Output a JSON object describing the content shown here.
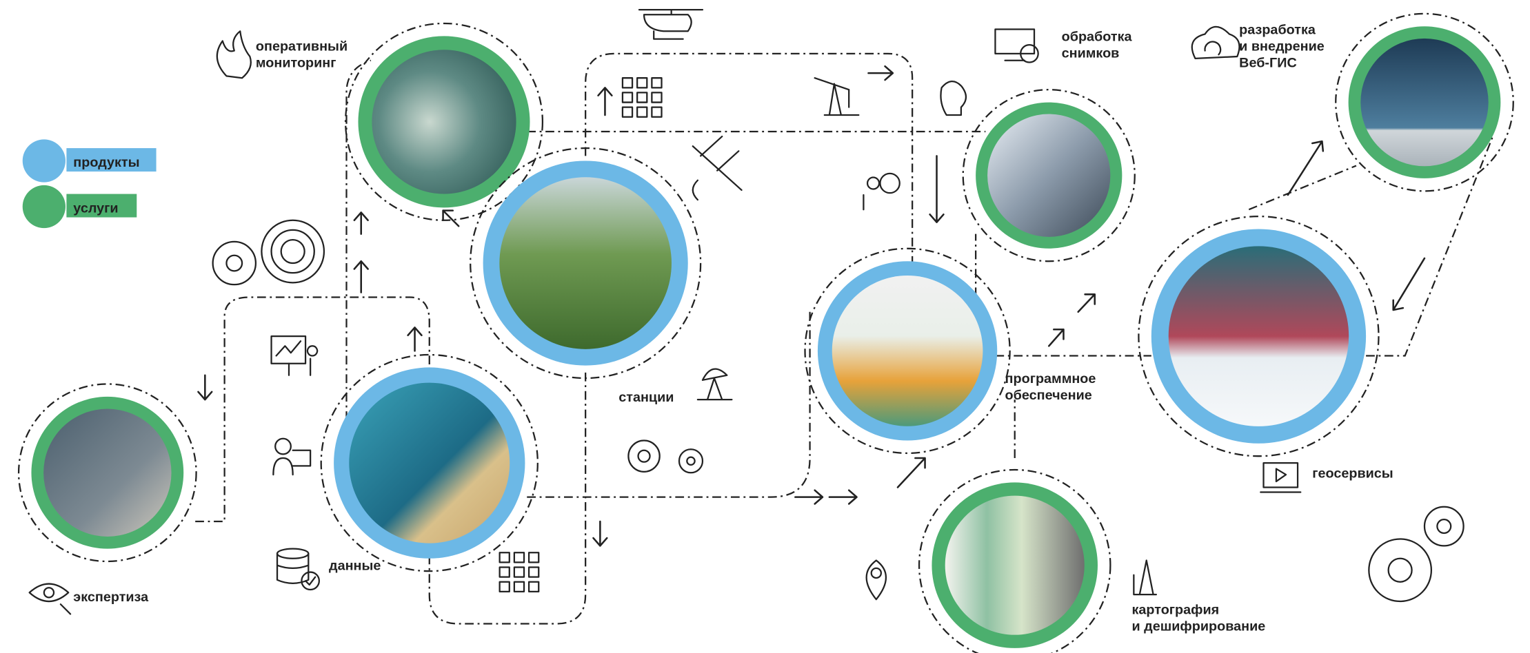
{
  "legend": [
    {
      "label": "продукты",
      "color": "#6cb8e6"
    },
    {
      "label": "услуги",
      "color": "#4caf6e"
    }
  ],
  "nodes": [
    {
      "label": [
        "оперативный",
        "мониторинг"
      ],
      "color": "#4caf6e"
    },
    {
      "label": [
        "станции"
      ],
      "color": "#6cb8e6"
    },
    {
      "label": [
        "данные"
      ],
      "color": "#6cb8e6"
    },
    {
      "label": [
        "экспертиза"
      ],
      "color": "#4caf6e"
    },
    {
      "label": [
        "обработка",
        "снимков"
      ],
      "color": "#4caf6e"
    },
    {
      "label": [
        "разработка",
        "и внедрение",
        "Веб-ГИС"
      ],
      "color": "#4caf6e"
    },
    {
      "label": [
        "программное",
        "обеспечение"
      ],
      "color": "#6cb8e6"
    },
    {
      "label": [
        "геосервисы"
      ],
      "color": "#6cb8e6"
    },
    {
      "label": [
        "картография",
        "и дешифрирование"
      ],
      "color": "#4caf6e"
    }
  ]
}
